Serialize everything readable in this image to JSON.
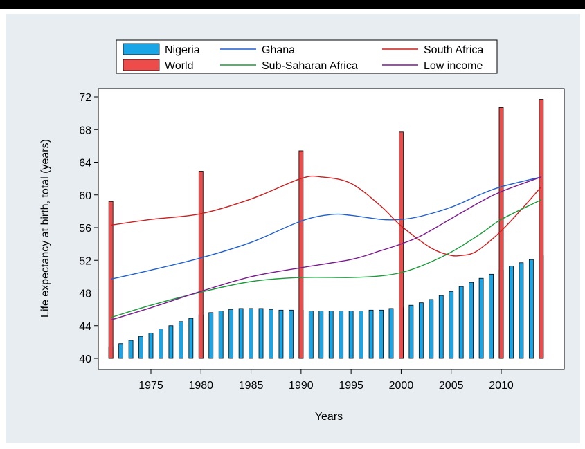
{
  "chart_data": {
    "type": "bar",
    "xlabel": "Years",
    "ylabel": "Life expectancy at birth, total (years)",
    "xlim": [
      1970,
      2015
    ],
    "ylim": [
      40,
      72
    ],
    "xticks": [
      1975,
      1980,
      1985,
      1990,
      1995,
      2000,
      2005,
      2010
    ],
    "yticks": [
      40,
      44,
      48,
      52,
      56,
      60,
      64,
      68,
      72
    ],
    "grid": false,
    "legend_position": "top",
    "legend_order": [
      "Nigeria",
      "Ghana",
      "South Africa",
      "World",
      "Sub-Saharan Africa",
      "Low income"
    ],
    "series": [
      {
        "name": "Nigeria",
        "kind": "bar",
        "color": "#1aa6e6",
        "x": [
          1971,
          1972,
          1973,
          1974,
          1975,
          1976,
          1977,
          1978,
          1979,
          1980,
          1981,
          1982,
          1983,
          1984,
          1985,
          1986,
          1987,
          1988,
          1989,
          1990,
          1991,
          1992,
          1993,
          1994,
          1995,
          1996,
          1997,
          1998,
          1999,
          2000,
          2001,
          2002,
          2003,
          2004,
          2005,
          2006,
          2007,
          2008,
          2009,
          2010,
          2011,
          2012,
          2013,
          2014
        ],
        "values": [
          41.4,
          41.8,
          42.2,
          42.7,
          43.1,
          43.6,
          44.0,
          44.5,
          44.9,
          45.3,
          45.6,
          45.8,
          46.0,
          46.1,
          46.1,
          46.1,
          46.0,
          45.9,
          45.9,
          45.9,
          45.8,
          45.8,
          45.8,
          45.8,
          45.8,
          45.8,
          45.9,
          45.9,
          46.1,
          46.2,
          46.5,
          46.8,
          47.2,
          47.7,
          48.2,
          48.8,
          49.3,
          49.8,
          50.3,
          50.8,
          51.3,
          51.7,
          52.1,
          52.6
        ]
      },
      {
        "name": "World",
        "kind": "bar",
        "color": "#ee4b4b",
        "x": [
          1971,
          1980,
          1990,
          2000,
          2010,
          2014
        ],
        "values": [
          59.2,
          62.9,
          65.4,
          67.7,
          70.7,
          71.7
        ]
      },
      {
        "name": "Ghana",
        "kind": "line",
        "color": "#1f5fd0",
        "x": [
          1971,
          1975,
          1980,
          1985,
          1990,
          1993,
          1995,
          1998,
          2000,
          2002,
          2005,
          2008,
          2010,
          2014
        ],
        "values": [
          49.7,
          50.8,
          52.3,
          54.2,
          56.8,
          57.6,
          57.5,
          57.0,
          57.0,
          57.4,
          58.5,
          60.1,
          61.0,
          62.2
        ]
      },
      {
        "name": "South Africa",
        "kind": "line",
        "color": "#cc1f1f",
        "x": [
          1971,
          1975,
          1980,
          1985,
          1990,
          1992,
          1995,
          1998,
          2000,
          2003,
          2005,
          2006,
          2007,
          2008,
          2010,
          2012,
          2014
        ],
        "values": [
          56.3,
          57.0,
          57.7,
          59.5,
          62.0,
          62.2,
          61.4,
          58.6,
          56.2,
          53.5,
          52.6,
          52.6,
          52.8,
          53.5,
          55.6,
          58.2,
          61.0
        ]
      },
      {
        "name": "Sub-Saharan Africa",
        "kind": "line",
        "color": "#1a9a3a",
        "x": [
          1971,
          1975,
          1980,
          1985,
          1990,
          1995,
          1998,
          2000,
          2002,
          2005,
          2008,
          2010,
          2014
        ],
        "values": [
          45.0,
          46.5,
          48.1,
          49.4,
          49.9,
          49.9,
          50.1,
          50.5,
          51.3,
          53.0,
          55.3,
          57.0,
          59.4
        ]
      },
      {
        "name": "Low income",
        "kind": "line",
        "color": "#7a1a8e",
        "x": [
          1971,
          1975,
          1980,
          1985,
          1990,
          1995,
          1998,
          2000,
          2002,
          2005,
          2008,
          2010,
          2014
        ],
        "values": [
          44.7,
          46.2,
          48.2,
          50.0,
          51.1,
          52.1,
          53.2,
          54.0,
          55.0,
          57.1,
          59.2,
          60.4,
          62.2
        ]
      }
    ]
  }
}
